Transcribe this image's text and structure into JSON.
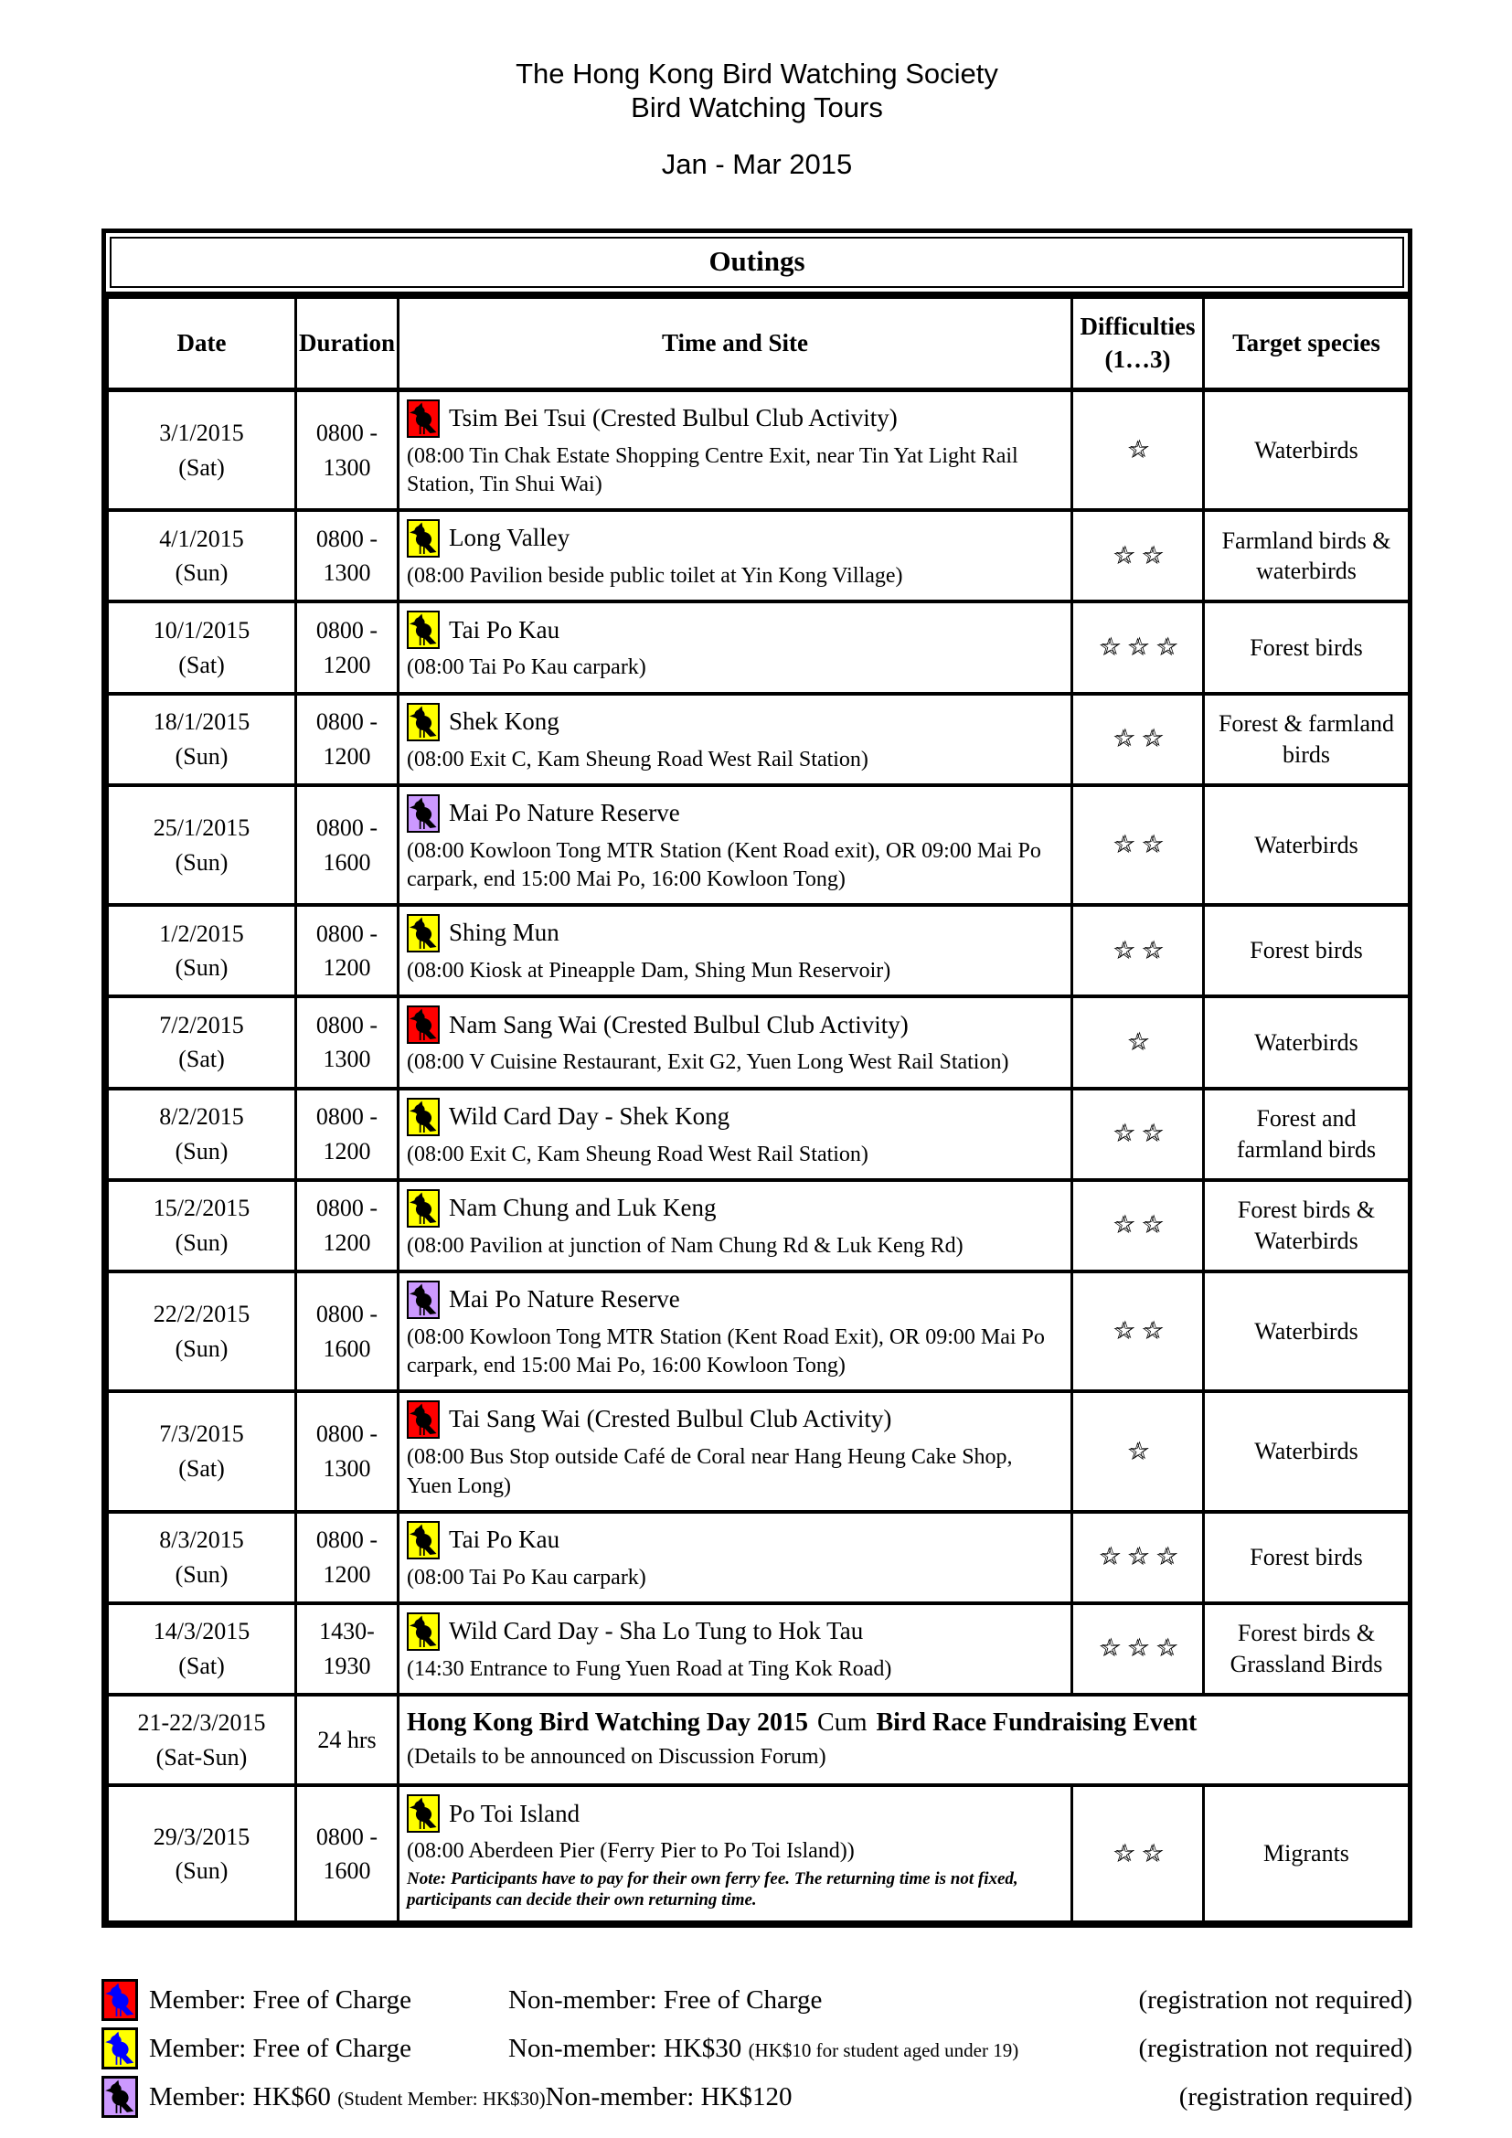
{
  "header": {
    "title_line1": "The Hong Kong Bird Watching Society",
    "title_line2": "Bird Watching Tours",
    "period": "Jan - Mar 2015"
  },
  "colors": {
    "red": "#ff0000",
    "yellow": "#ffff00",
    "purple": "#cc99ff",
    "bird_blue": "#0000ff",
    "bird_black": "#000000",
    "border": "#000000"
  },
  "table": {
    "title": "Outings",
    "star_char": "☆",
    "columns": {
      "date": "Date",
      "duration": "Duration",
      "site": "Time and Site",
      "difficulties": "Difficulties\n(1…3)",
      "species": "Target species"
    }
  },
  "rows": [
    {
      "date": "3/1/2015\n(Sat)",
      "duration": "0800 -\n1300",
      "icon": "red",
      "site": "Tsim Bei Tsui (Crested Bulbul Club Activity)",
      "detail": "(08:00 Tin Chak Estate Shopping Centre Exit, near Tin Yat Light Rail Station, Tin Shui Wai)",
      "stars": 1,
      "species": "Waterbirds"
    },
    {
      "date": "4/1/2015\n(Sun)",
      "duration": "0800 -\n1300",
      "icon": "yellow",
      "site": "Long Valley",
      "detail": "(08:00 Pavilion beside public toilet at Yin Kong Village)",
      "stars": 2,
      "species": "Farmland birds & waterbirds"
    },
    {
      "date": "10/1/2015\n(Sat)",
      "duration": "0800 -\n1200",
      "icon": "yellow",
      "site": "Tai Po Kau",
      "detail": "(08:00 Tai Po Kau carpark)",
      "stars": 3,
      "species": "Forest birds"
    },
    {
      "date": "18/1/2015\n(Sun)",
      "duration": "0800 -\n1200",
      "icon": "yellow",
      "site": "Shek Kong",
      "detail": "(08:00 Exit C, Kam Sheung Road West Rail Station)",
      "stars": 2,
      "species": "Forest & farmland birds"
    },
    {
      "date": "25/1/2015\n(Sun)",
      "duration": "0800 -\n1600",
      "icon": "purple",
      "site": "Mai Po Nature Reserve",
      "detail": "(08:00 Kowloon Tong MTR Station (Kent Road exit), OR 09:00 Mai Po carpark, end 15:00 Mai Po, 16:00 Kowloon Tong)",
      "stars": 2,
      "species": "Waterbirds"
    },
    {
      "date": "1/2/2015\n(Sun)",
      "duration": "0800 -\n1200",
      "icon": "yellow",
      "site": "Shing Mun",
      "detail": "(08:00 Kiosk at Pineapple Dam, Shing Mun Reservoir)",
      "stars": 2,
      "species": "Forest birds"
    },
    {
      "date": "7/2/2015\n(Sat)",
      "duration": "0800 -\n1300",
      "icon": "red",
      "site": "Nam Sang Wai (Crested Bulbul Club Activity)",
      "detail": "(08:00 V Cuisine Restaurant, Exit G2, Yuen Long West Rail Station)",
      "stars": 1,
      "species": "Waterbirds"
    },
    {
      "date": "8/2/2015\n(Sun)",
      "duration": "0800 -\n1200",
      "icon": "yellow",
      "site": "Wild Card Day - Shek Kong",
      "detail": "(08:00 Exit C, Kam Sheung Road West Rail Station)",
      "stars": 2,
      "species": "Forest and farmland birds"
    },
    {
      "date": "15/2/2015\n(Sun)",
      "duration": "0800 -\n1200",
      "icon": "yellow",
      "site": "Nam Chung and Luk Keng",
      "detail": "(08:00 Pavilion at junction of Nam Chung Rd & Luk Keng Rd)",
      "stars": 2,
      "species": "Forest birds & Waterbirds"
    },
    {
      "date": "22/2/2015\n(Sun)",
      "duration": "0800 -\n1600",
      "icon": "purple",
      "site": "Mai Po Nature Reserve",
      "detail": "(08:00 Kowloon Tong MTR Station (Kent Road Exit), OR 09:00 Mai Po carpark, end 15:00 Mai Po, 16:00 Kowloon Tong)",
      "stars": 2,
      "species": "Waterbirds"
    },
    {
      "date": "7/3/2015\n(Sat)",
      "duration": "0800 -\n1300",
      "icon": "red",
      "site": "Tai Sang Wai (Crested Bulbul Club Activity)",
      "detail": "(08:00 Bus Stop outside Café de Coral near Hang Heung Cake Shop, Yuen Long)",
      "stars": 1,
      "species": "Waterbirds"
    },
    {
      "date": "8/3/2015\n(Sun)",
      "duration": "0800 -\n1200",
      "icon": "yellow",
      "site": "Tai Po Kau",
      "detail": "(08:00 Tai Po Kau carpark)",
      "stars": 3,
      "species": "Forest birds"
    },
    {
      "date": "14/3/2015\n(Sat)",
      "duration": "1430-\n1930",
      "icon": "yellow",
      "site": "Wild Card Day - Sha Lo Tung to Hok Tau",
      "detail": "(14:30 Entrance to Fung Yuen Road at Ting Kok Road)",
      "stars": 3,
      "species": "Forest birds & Grassland Birds"
    },
    {
      "date": "21-22/3/2015\n(Sat-Sun)",
      "duration": "24 hrs",
      "icon": null,
      "span": true,
      "site_parts": [
        {
          "text": "Hong Kong Bird Watching Day 2015",
          "bold": true
        },
        {
          "text": " Cum ",
          "bold": false
        },
        {
          "text": "Bird Race Fundraising Event",
          "bold": true
        }
      ],
      "detail": "(Details to be announced on Discussion Forum)"
    },
    {
      "date": "29/3/2015\n(Sun)",
      "duration": "0800 -\n1600",
      "icon": "yellow",
      "site": "Po Toi Island",
      "detail": "(08:00 Aberdeen Pier (Ferry Pier to Po Toi Island))",
      "note": "Note: Participants have to pay for their own ferry fee. The returning time is not fixed, participants can decide their own returning time.",
      "stars": 2,
      "species": "Migrants"
    }
  ],
  "legend": [
    {
      "icon": "red",
      "bird": "blue",
      "member": "Member: Free of Charge",
      "nonmember": "Non-member: Free of Charge",
      "registration": "(registration not required)"
    },
    {
      "icon": "yellow",
      "bird": "blue",
      "member": "Member: Free of Charge",
      "nonmember": "Non-member: HK$30",
      "nonmember_small": "(HK$10 for student aged under 19)",
      "registration": "(registration not required)"
    },
    {
      "icon": "purple",
      "bird": "black",
      "member": "Member: HK$60",
      "member_small": "(Student Member: HK$30)",
      "nonmember": "Non-member: HK$120",
      "registration": "(registration required)"
    }
  ]
}
